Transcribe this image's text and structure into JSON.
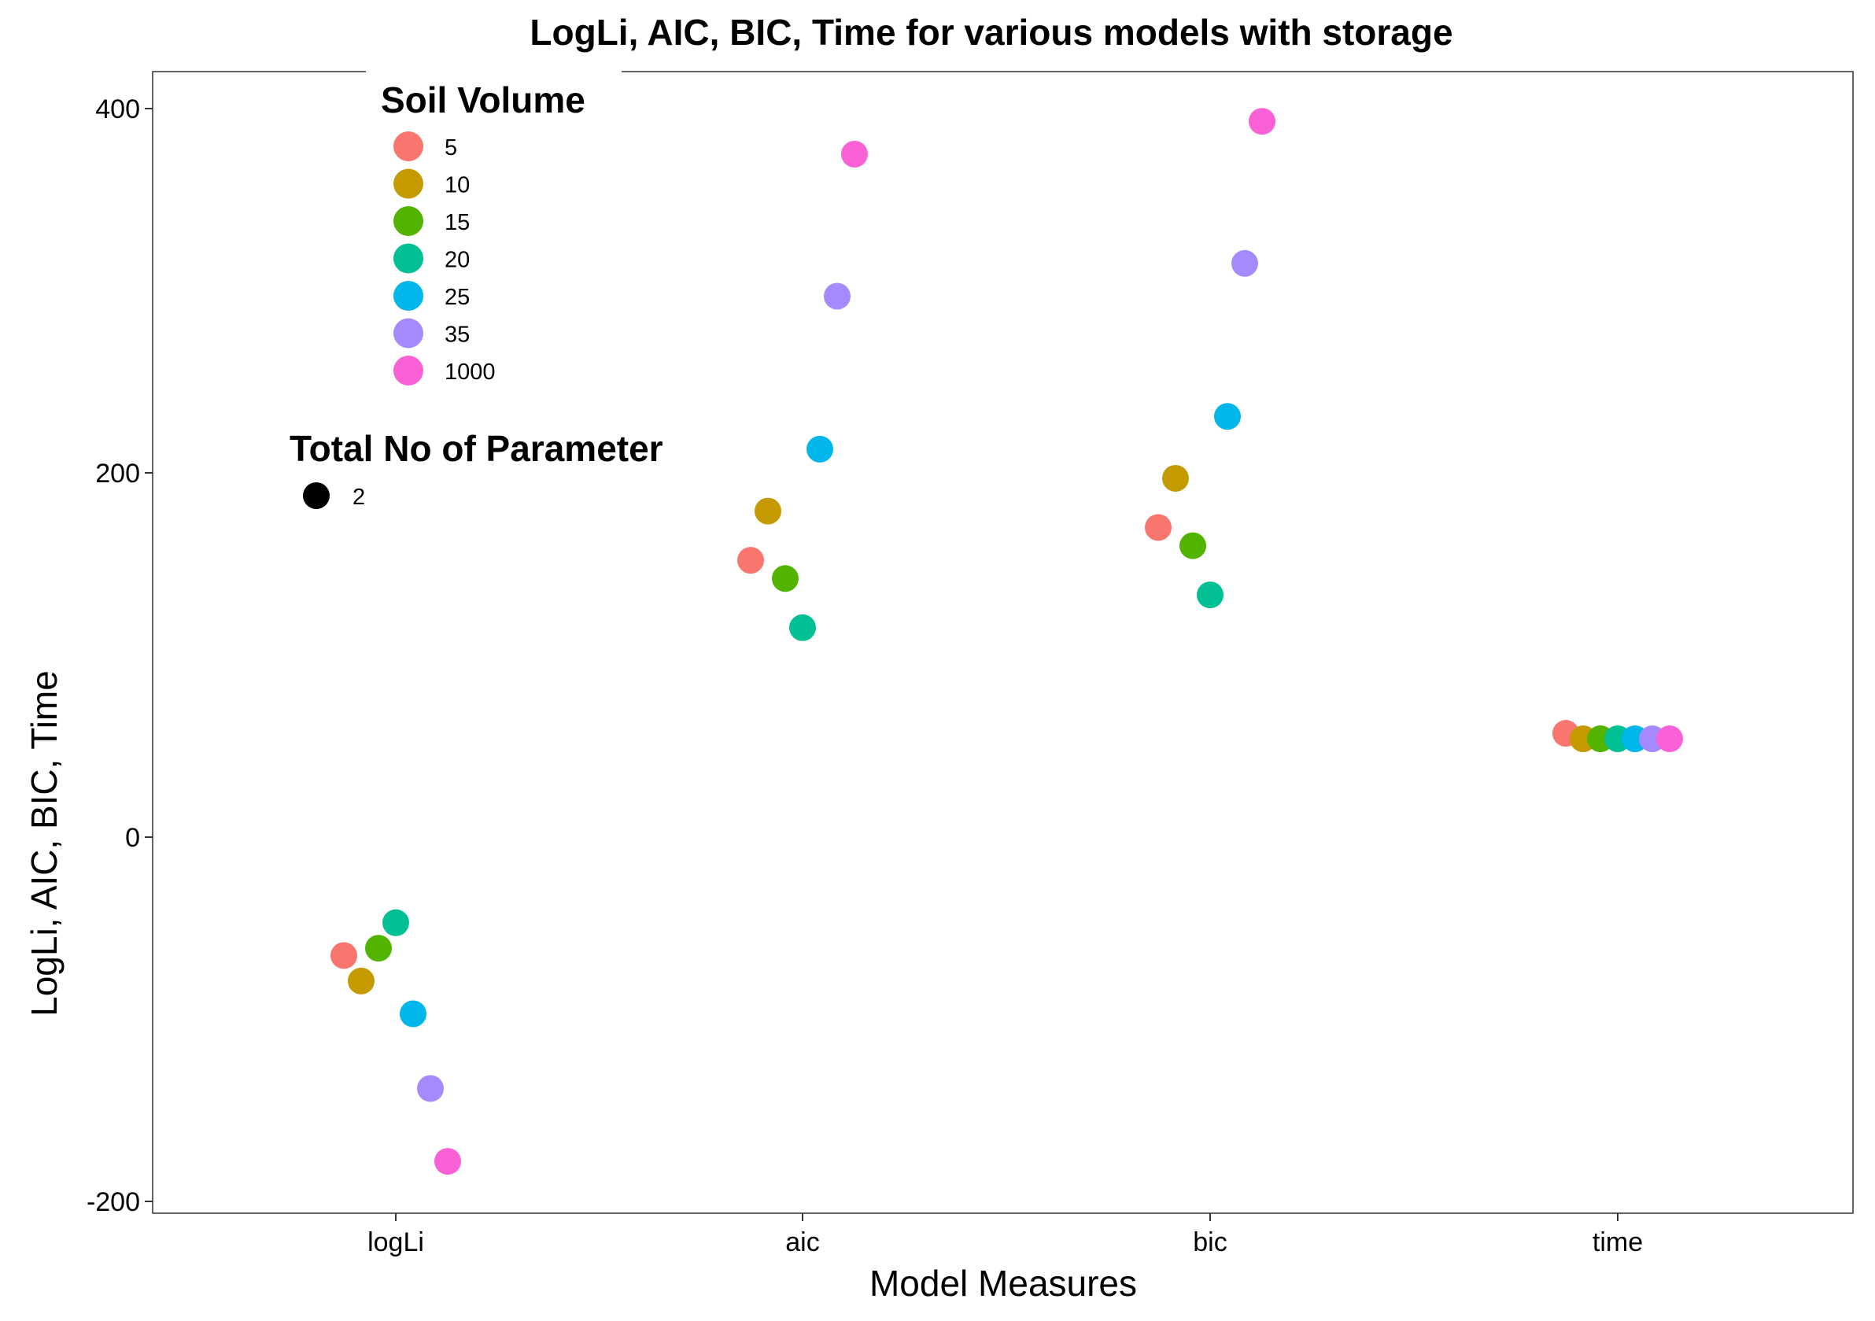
{
  "chart_data": {
    "type": "scatter",
    "title": "LogLi, AIC, BIC, Time for various models with storage",
    "xlabel": "Model Measures",
    "ylabel": "LogLi, AIC, BIC, Time",
    "categories": [
      "logLi",
      "aic",
      "bic",
      "time"
    ],
    "ylim": [
      -207,
      420
    ],
    "yticks": [
      -200,
      0,
      200,
      400
    ],
    "grid": false,
    "legend_placement": "top-left",
    "color_legend_title": "Soil Volume",
    "size_legend": {
      "title": "Total No of Parameter",
      "entries": [
        "2"
      ]
    },
    "series": [
      {
        "name": "5",
        "color": "#F8766D",
        "values": [
          -65,
          152,
          170,
          57
        ]
      },
      {
        "name": "10",
        "color": "#C49A00",
        "values": [
          -79,
          179,
          197,
          54
        ]
      },
      {
        "name": "15",
        "color": "#53B400",
        "values": [
          -61,
          142,
          160,
          54
        ]
      },
      {
        "name": "20",
        "color": "#00C094",
        "values": [
          -47,
          115,
          133,
          54
        ]
      },
      {
        "name": "25",
        "color": "#00B6EB",
        "values": [
          -97,
          213,
          231,
          54
        ]
      },
      {
        "name": "35",
        "color": "#A58AFF",
        "values": [
          -138,
          297,
          315,
          54
        ]
      },
      {
        "name": "1000",
        "color": "#FB61D7",
        "values": [
          -178,
          375,
          393,
          54
        ]
      }
    ]
  }
}
